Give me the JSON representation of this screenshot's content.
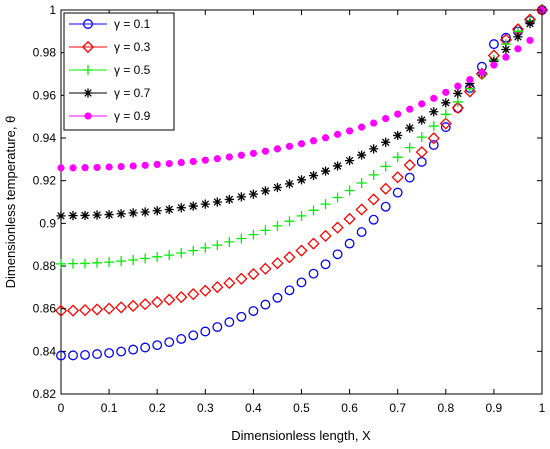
{
  "chart_data": {
    "type": "line",
    "xlabel": "Dimensionless length, X",
    "ylabel": "Dimensionless temperature, θ",
    "xlim": [
      0,
      1
    ],
    "ylim": [
      0.82,
      1
    ],
    "xticks": [
      "0",
      "0.1",
      "0.2",
      "0.3",
      "0.4",
      "0.5",
      "0.6",
      "0.7",
      "0.8",
      "0.9",
      "1"
    ],
    "yticks": [
      "0.82",
      "0.84",
      "0.86",
      "0.88",
      "0.9",
      "0.92",
      "0.94",
      "0.96",
      "0.98",
      "1"
    ],
    "grid": false,
    "legend_position": "top-left",
    "x": [
      0,
      0.025,
      0.05,
      0.075,
      0.1,
      0.125,
      0.15,
      0.175,
      0.2,
      0.225,
      0.25,
      0.275,
      0.3,
      0.325,
      0.35,
      0.375,
      0.4,
      0.425,
      0.45,
      0.475,
      0.5,
      0.525,
      0.55,
      0.575,
      0.6,
      0.625,
      0.65,
      0.675,
      0.7,
      0.725,
      0.75,
      0.775,
      0.8,
      0.825,
      0.85,
      0.875,
      0.9,
      0.925,
      0.95,
      0.975,
      1
    ],
    "series": [
      {
        "name": "γ = 0.1",
        "marker": "circle",
        "color": "#0000ff",
        "values": [
          0.838,
          0.8381,
          0.8383,
          0.8387,
          0.8392,
          0.8399,
          0.8408,
          0.8418,
          0.8429,
          0.8443,
          0.8458,
          0.8475,
          0.8493,
          0.8514,
          0.8537,
          0.8562,
          0.8589,
          0.8619,
          0.8651,
          0.8686,
          0.8723,
          0.8764,
          0.8808,
          0.8855,
          0.8905,
          0.8959,
          0.9017,
          0.9078,
          0.9144,
          0.9214,
          0.9288,
          0.9367,
          0.9451,
          0.954,
          0.9634,
          0.9734,
          0.984,
          0.987,
          0.99,
          0.995,
          1.0
        ]
      },
      {
        "name": "γ = 0.3",
        "marker": "diamond",
        "color": "#ff0000",
        "values": [
          0.859,
          0.8591,
          0.8593,
          0.8596,
          0.86,
          0.8606,
          0.8613,
          0.8621,
          0.8631,
          0.8642,
          0.8654,
          0.8668,
          0.8684,
          0.8701,
          0.872,
          0.874,
          0.8762,
          0.8787,
          0.8813,
          0.8841,
          0.8872,
          0.8905,
          0.8941,
          0.898,
          0.9021,
          0.9065,
          0.9112,
          0.9162,
          0.9216,
          0.9273,
          0.9334,
          0.9399,
          0.9468,
          0.9541,
          0.9618,
          0.97,
          0.9787,
          0.986,
          0.991,
          0.9955,
          1.0
        ]
      },
      {
        "name": "γ = 0.5",
        "marker": "plus",
        "color": "#00ee00",
        "values": [
          0.881,
          0.8811,
          0.8812,
          0.8815,
          0.8818,
          0.8823,
          0.8828,
          0.8835,
          0.8843,
          0.8851,
          0.8861,
          0.8872,
          0.8885,
          0.8898,
          0.8913,
          0.8929,
          0.8947,
          0.8967,
          0.8988,
          0.901,
          0.9035,
          0.9061,
          0.909,
          0.9121,
          0.9154,
          0.9189,
          0.9227,
          0.9267,
          0.931,
          0.9355,
          0.9404,
          0.9456,
          0.9511,
          0.9569,
          0.9631,
          0.9697,
          0.9766,
          0.984,
          0.99,
          0.995,
          1.0
        ]
      },
      {
        "name": "γ = 0.7",
        "marker": "asterisk",
        "color": "#000000",
        "values": [
          0.9035,
          0.9036,
          0.9037,
          0.9039,
          0.9041,
          0.9045,
          0.9049,
          0.9053,
          0.9059,
          0.9065,
          0.9073,
          0.9081,
          0.909,
          0.91,
          0.9112,
          0.9124,
          0.9137,
          0.9152,
          0.9168,
          0.9185,
          0.9204,
          0.9224,
          0.9245,
          0.9269,
          0.9294,
          0.932,
          0.9349,
          0.938,
          0.9412,
          0.9447,
          0.9484,
          0.9523,
          0.9565,
          0.9609,
          0.9656,
          0.9706,
          0.9759,
          0.9815,
          0.9874,
          0.9936,
          1.0
        ]
      },
      {
        "name": "γ = 0.9",
        "marker": "dot",
        "color": "#ff00ff",
        "values": [
          0.926,
          0.926,
          0.9261,
          0.9262,
          0.9264,
          0.9266,
          0.9269,
          0.9272,
          0.9276,
          0.928,
          0.9285,
          0.929,
          0.9296,
          0.9303,
          0.9311,
          0.9319,
          0.9328,
          0.9338,
          0.9349,
          0.9361,
          0.9373,
          0.9387,
          0.9401,
          0.9417,
          0.9433,
          0.9451,
          0.947,
          0.9491,
          0.9512,
          0.9535,
          0.956,
          0.9586,
          0.9614,
          0.9643,
          0.9674,
          0.9707,
          0.9742,
          0.9779,
          0.9818,
          0.9858,
          1.0
        ]
      }
    ]
  }
}
